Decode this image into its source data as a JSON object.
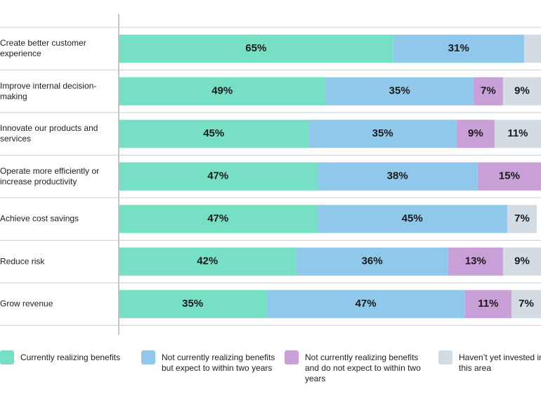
{
  "chart_data": {
    "type": "stacked-bar-horizontal",
    "categories": [
      "Create better customer experience",
      "Improve internal decision-making",
      "Innovate our products and services",
      "Operate more efficiently or increase productivity",
      "Achieve cost savings",
      "Reduce risk",
      "Grow revenue"
    ],
    "xlim": [
      0,
      100
    ],
    "series": [
      {
        "name": "Currently realizing benefits",
        "color": "#77dfc3",
        "values": [
          65,
          49,
          45,
          47,
          47,
          42,
          35
        ],
        "value_labels": [
          "65%",
          "49%",
          "45%",
          "47%",
          "47%",
          "42%",
          "35%"
        ]
      },
      {
        "name": "Not currently realizing benefits but expect to within two years",
        "color": "#8fc8ea",
        "values": [
          31,
          35,
          35,
          38,
          45,
          36,
          47
        ],
        "value_labels": [
          "31%",
          "35%",
          "35%",
          "38%",
          "45%",
          "36%",
          "47%"
        ]
      },
      {
        "name": "Not currently realizing benefits and do not expect to within two years",
        "color": "#c99fd8",
        "values": [
          0,
          7,
          9,
          15,
          0,
          13,
          11
        ],
        "value_labels": [
          null,
          "7%",
          "9%",
          "15%",
          null,
          "13%",
          "11%"
        ]
      },
      {
        "name": "Haven’t yet invested in this area",
        "color": "#d3dce3",
        "values": [
          4,
          9,
          11,
          0,
          7,
          9,
          7
        ],
        "value_labels": [
          null,
          "9%",
          "11%",
          null,
          "7%",
          "9%",
          "7%"
        ]
      }
    ]
  }
}
